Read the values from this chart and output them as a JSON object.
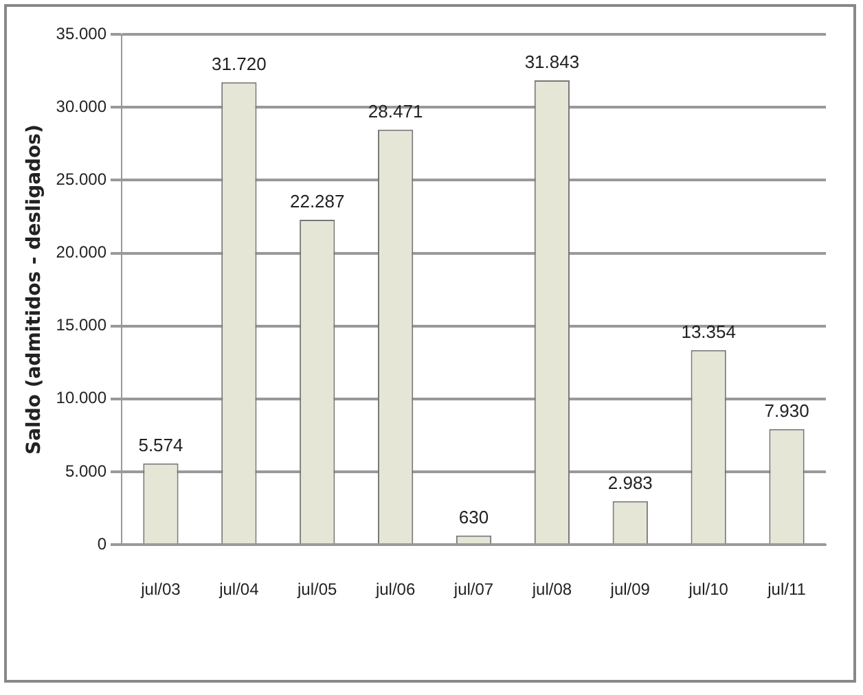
{
  "chart_data": {
    "type": "bar",
    "ylabel": "Saldo (admitidos - desligados)",
    "categories": [
      "jul/03",
      "jul/04",
      "jul/05",
      "jul/06",
      "jul/07",
      "jul/08",
      "jul/09",
      "jul/10",
      "jul/11"
    ],
    "values": [
      5574,
      31720,
      22287,
      28471,
      630,
      31843,
      2983,
      13354,
      7930
    ],
    "value_labels": [
      "5.574",
      "31.720",
      "22.287",
      "28.471",
      "630",
      "31.843",
      "2.983",
      "13.354",
      "7.930"
    ],
    "color": "#e6e6d6",
    "ylim": [
      0,
      35000
    ],
    "yticks": [
      {
        "value": 0,
        "label": "0"
      },
      {
        "value": 5000,
        "label": "5.000"
      },
      {
        "value": 10000,
        "label": "10.000"
      },
      {
        "value": 15000,
        "label": "15.000"
      },
      {
        "value": 20000,
        "label": "20.000"
      },
      {
        "value": 25000,
        "label": "25.000"
      },
      {
        "value": 30000,
        "label": "30.000"
      },
      {
        "value": 35000,
        "label": "35.000"
      }
    ],
    "grid": "y"
  }
}
